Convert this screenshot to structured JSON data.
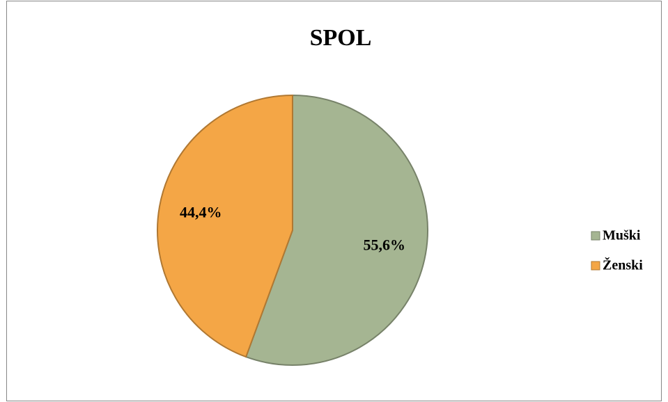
{
  "chart_data": {
    "type": "pie",
    "title": "SPOL",
    "categories": [
      "Muški",
      "Ženski"
    ],
    "values": [
      55.6,
      44.4
    ],
    "value_labels": [
      "55,6%",
      "44,4%"
    ],
    "colors": [
      "#a5b592",
      "#f4a646"
    ],
    "legend": "right"
  }
}
